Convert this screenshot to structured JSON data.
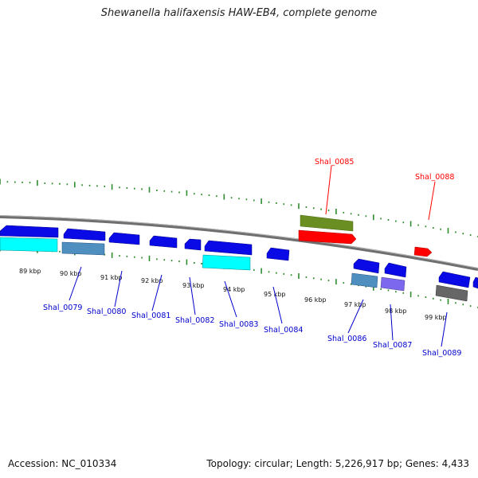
{
  "title": "Shewanella halifaxensis HAW-EB4, complete genome",
  "footer": {
    "accession": "Accession: NC_010334",
    "stats": "Topology: circular; Length: 5,226,917 bp; Genes: 4,433"
  },
  "colors": {
    "backbone": "#8a8a8a",
    "tick": "#2e8b2e",
    "forward_gene": "#0a0ae6",
    "label_forward": "#ff0000",
    "label_reverse": "#0000cc",
    "cyan": "#00ffff",
    "steelblue": "#4f8fbf",
    "olive": "#6b8e23",
    "red": "#ff0000",
    "slateblue": "#7b68ee",
    "gray": "#666666"
  },
  "scale_labels": [
    "89 kbp",
    "90 kbp",
    "91 kbp",
    "92 kbp",
    "93 kbp",
    "94 kbp",
    "95 kbp",
    "96 kbp",
    "97 kbp",
    "98 kbp",
    "99 kbp"
  ],
  "gene_labels": {
    "top": [
      "Shal_0085",
      "Shal_0088"
    ],
    "bottom": [
      "Shal_0079",
      "Shal_0080",
      "Shal_0081",
      "Shal_0082",
      "Shal_0083",
      "Shal_0084",
      "Shal_0086",
      "Shal_0087",
      "Shal_0089"
    ]
  }
}
